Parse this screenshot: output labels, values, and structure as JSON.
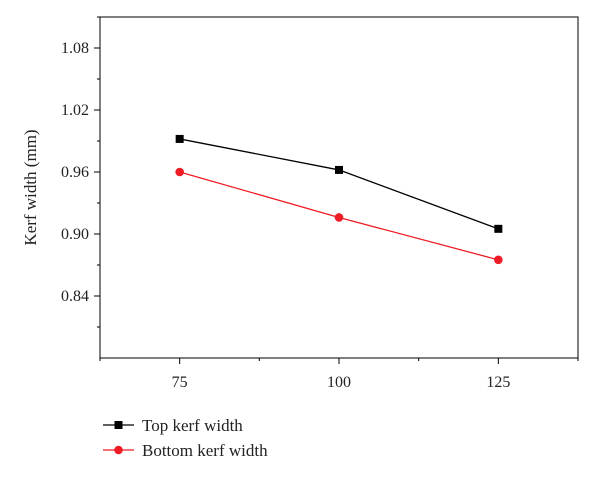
{
  "chart_data": {
    "type": "line",
    "title": "",
    "xlabel": "",
    "ylabel": "Kerf width (mm)",
    "x": [
      75,
      100,
      125
    ],
    "xlim": [
      62.5,
      137.5
    ],
    "ylim": [
      0.78,
      1.11
    ],
    "x_ticks": [
      75,
      100,
      125
    ],
    "y_ticks": [
      0.84,
      0.9,
      0.96,
      1.02,
      1.08
    ],
    "x_tick_labels": [
      "75",
      "100",
      "125"
    ],
    "y_tick_labels": [
      "0.84",
      "0.90",
      "0.96",
      "1.02",
      "1.08"
    ],
    "series": [
      {
        "name": "Top kerf width",
        "values": [
          0.992,
          0.962,
          0.905
        ],
        "color": "#000000",
        "marker": "square"
      },
      {
        "name": "Bottom kerf width",
        "values": [
          0.96,
          0.916,
          0.875
        ],
        "color": "#ee1c24",
        "marker": "circle"
      }
    ],
    "grid": false,
    "legend": "bottom-left"
  }
}
